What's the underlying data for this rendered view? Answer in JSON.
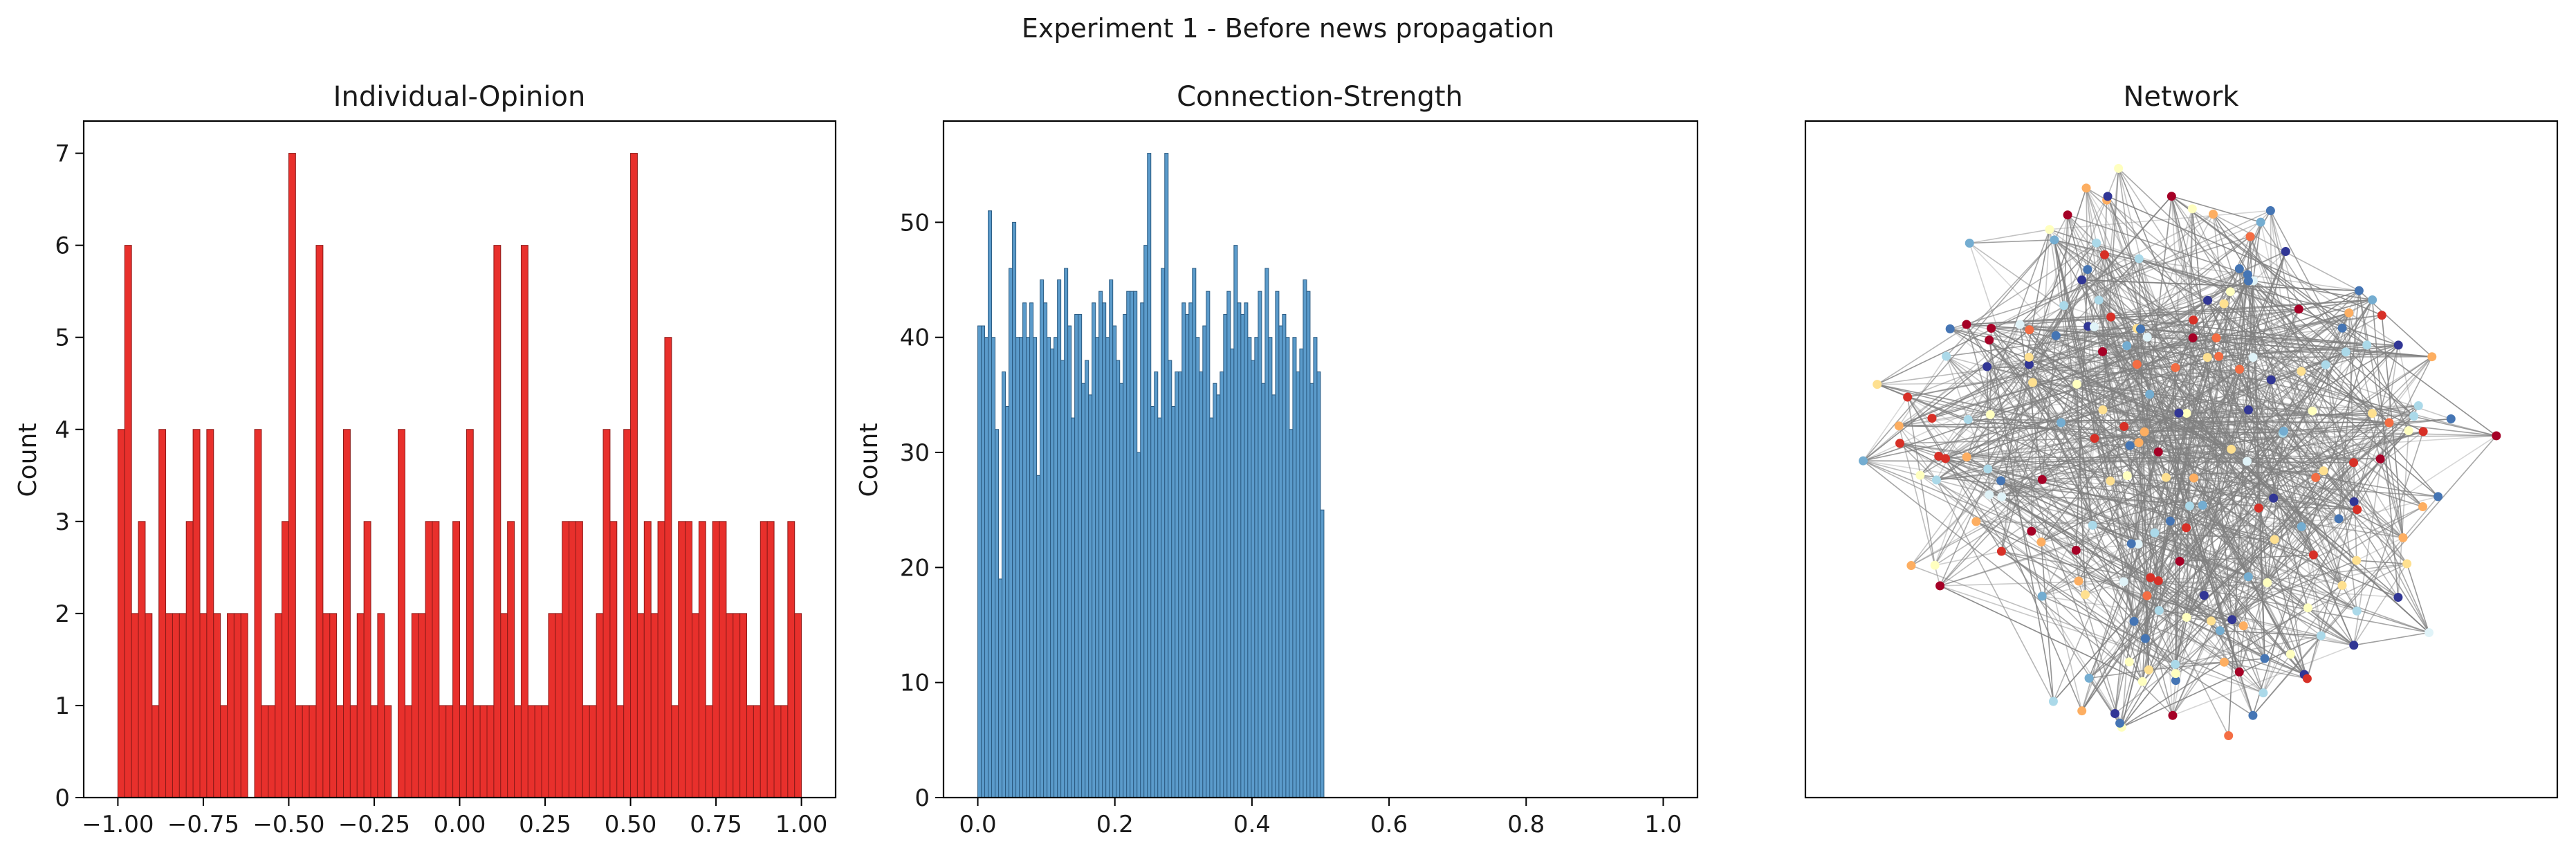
{
  "title": "Experiment 1 - Before news propagation",
  "chart_data": [
    {
      "type": "bar",
      "title": "Individual-Opinion",
      "xlabel": "",
      "ylabel": "Count",
      "xlim": [
        -1.1,
        1.1
      ],
      "ylim": [
        0,
        7.35
      ],
      "xticks": [
        -1.0,
        -0.75,
        -0.5,
        -0.25,
        0.0,
        0.25,
        0.5,
        0.75,
        1.0
      ],
      "xtick_labels": [
        "−1.00",
        "−0.75",
        "−0.50",
        "−0.25",
        "0.00",
        "0.25",
        "0.50",
        "0.75",
        "1.00"
      ],
      "yticks": [
        0,
        1,
        2,
        3,
        4,
        5,
        6,
        7
      ],
      "bins": {
        "start": -1.0,
        "end": 1.0,
        "count": 100
      },
      "values": [
        4,
        6,
        2,
        3,
        2,
        1,
        4,
        2,
        2,
        2,
        3,
        4,
        2,
        4,
        2,
        1,
        2,
        2,
        2,
        0,
        4,
        1,
        1,
        2,
        3,
        7,
        1,
        1,
        1,
        6,
        2,
        2,
        1,
        4,
        1,
        2,
        3,
        1,
        2,
        1,
        0,
        4,
        1,
        2,
        2,
        3,
        3,
        1,
        1,
        3,
        1,
        4,
        1,
        1,
        1,
        6,
        2,
        3,
        1,
        6,
        1,
        1,
        1,
        2,
        2,
        3,
        3,
        3,
        1,
        1,
        2,
        4,
        3,
        1,
        4,
        7,
        2,
        3,
        2,
        3,
        5,
        1,
        3,
        3,
        2,
        3,
        1,
        3,
        3,
        2,
        2,
        2,
        1,
        1,
        3,
        3,
        1,
        1,
        3,
        2
      ],
      "color": "#e8302c",
      "edgecolor": "#8b1a18"
    },
    {
      "type": "bar",
      "title": "Connection-Strength",
      "xlabel": "",
      "ylabel": "Count",
      "xlim": [
        -0.05,
        1.05
      ],
      "ylim": [
        0,
        58.8
      ],
      "xticks": [
        0.0,
        0.2,
        0.4,
        0.6,
        0.8,
        1.0
      ],
      "xtick_labels": [
        "0.0",
        "0.2",
        "0.4",
        "0.6",
        "0.8",
        "1.0"
      ],
      "yticks": [
        0,
        10,
        20,
        30,
        40,
        50
      ],
      "bins": {
        "start": 0.0,
        "end": 0.505,
        "count": 100
      },
      "values": [
        41,
        41,
        40,
        51,
        40,
        32,
        19,
        37,
        34,
        46,
        50,
        40,
        40,
        43,
        40,
        43,
        40,
        28,
        45,
        43,
        40,
        39,
        40,
        45,
        38,
        46,
        41,
        33,
        42,
        42,
        36,
        38,
        35,
        43,
        40,
        44,
        43,
        40,
        45,
        41,
        38,
        36,
        42,
        44,
        44,
        44,
        30,
        43,
        48,
        56,
        34,
        37,
        33,
        46,
        56,
        38,
        34,
        37,
        37,
        43,
        42,
        43,
        46,
        40,
        37,
        41,
        44,
        33,
        36,
        35,
        37,
        42,
        44,
        39,
        48,
        43,
        42,
        43,
        40,
        38,
        40,
        44,
        36,
        46,
        40,
        35,
        44,
        41,
        42,
        40,
        32,
        40,
        37,
        39,
        45,
        44,
        36,
        40,
        37,
        25
      ],
      "color": "#5b9bcb",
      "edgecolor": "#2b5a80"
    },
    {
      "type": "network",
      "title": "Network",
      "node_colors": [
        "#a50026",
        "#d73027",
        "#f46d43",
        "#fdae61",
        "#fee090",
        "#ffffbf",
        "#e0f3f8",
        "#abd9e9",
        "#74add1",
        "#4575b4",
        "#313695"
      ],
      "edge_color": "#808080",
      "node_count": 200
    }
  ]
}
